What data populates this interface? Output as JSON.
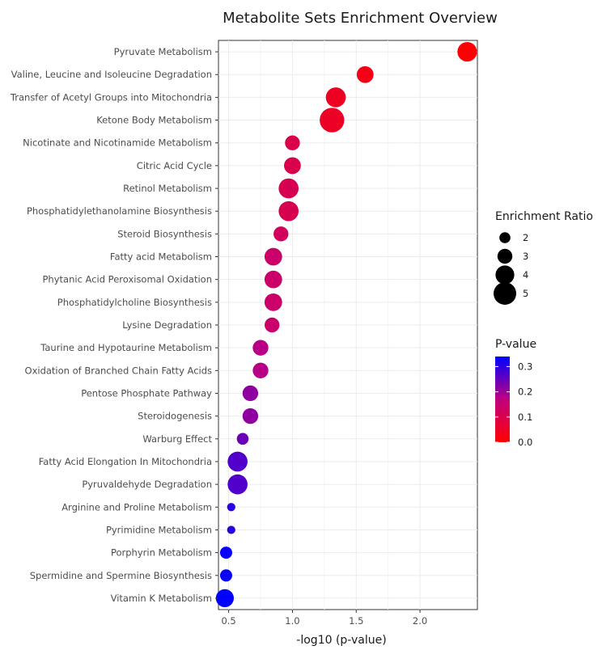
{
  "chart_data": {
    "type": "scatter",
    "title": "Metabolite Sets Enrichment Overview",
    "xlabel": "-log10 (p-value)",
    "ylabel": "",
    "xlim": [
      0.42,
      2.45
    ],
    "xticks": [
      "0.5",
      "1.0",
      "1.5",
      "2.0"
    ],
    "xtick_values": [
      0.5,
      1.0,
      1.5,
      2.0
    ],
    "grid": true,
    "points": [
      {
        "label": "Pyruvate Metabolism",
        "x": 2.37,
        "ratio": 4.2,
        "p": 0.004
      },
      {
        "label": "Valine, Leucine and Isoleucine Degradation",
        "x": 1.57,
        "ratio": 3.5,
        "p": 0.027
      },
      {
        "label": "Transfer of Acetyl Groups into Mitochondria",
        "x": 1.34,
        "ratio": 4.3,
        "p": 0.046
      },
      {
        "label": "Ketone Body Metabolism",
        "x": 1.31,
        "ratio": 5.5,
        "p": 0.049
      },
      {
        "label": "Nicotinate and Nicotinamide Metabolism",
        "x": 1.0,
        "ratio": 3.0,
        "p": 0.1
      },
      {
        "label": "Citric Acid Cycle",
        "x": 1.0,
        "ratio": 3.5,
        "p": 0.1
      },
      {
        "label": "Retinol Metabolism",
        "x": 0.97,
        "ratio": 4.3,
        "p": 0.107
      },
      {
        "label": "Phosphatidylethanolamine Biosynthesis",
        "x": 0.97,
        "ratio": 4.3,
        "p": 0.107
      },
      {
        "label": "Steroid Biosynthesis",
        "x": 0.91,
        "ratio": 3.0,
        "p": 0.123
      },
      {
        "label": "Fatty acid Metabolism",
        "x": 0.85,
        "ratio": 3.7,
        "p": 0.141
      },
      {
        "label": "Phytanic Acid Peroxisomal Oxidation",
        "x": 0.85,
        "ratio": 3.7,
        "p": 0.141
      },
      {
        "label": "Phosphatidylcholine Biosynthesis",
        "x": 0.85,
        "ratio": 3.7,
        "p": 0.141
      },
      {
        "label": "Lysine Degradation",
        "x": 0.84,
        "ratio": 3.0,
        "p": 0.145
      },
      {
        "label": "Taurine and Hypotaurine Metabolism",
        "x": 0.75,
        "ratio": 3.2,
        "p": 0.178
      },
      {
        "label": "Oxidation of Branched Chain Fatty Acids",
        "x": 0.75,
        "ratio": 3.2,
        "p": 0.178
      },
      {
        "label": "Pentose Phosphate Pathway",
        "x": 0.67,
        "ratio": 3.2,
        "p": 0.214
      },
      {
        "label": "Steroidogenesis",
        "x": 0.67,
        "ratio": 3.2,
        "p": 0.214
      },
      {
        "label": "Warburg Effect",
        "x": 0.61,
        "ratio": 2.2,
        "p": 0.245
      },
      {
        "label": "Fatty Acid Elongation In Mitochondria",
        "x": 0.57,
        "ratio": 4.3,
        "p": 0.269
      },
      {
        "label": "Pyruvaldehyde Degradation",
        "x": 0.57,
        "ratio": 4.3,
        "p": 0.269
      },
      {
        "label": "Arginine and Proline Metabolism",
        "x": 0.52,
        "ratio": 1.3,
        "p": 0.302
      },
      {
        "label": "Pyrimidine Metabolism",
        "x": 0.52,
        "ratio": 1.3,
        "p": 0.302
      },
      {
        "label": "Porphyrin Metabolism",
        "x": 0.48,
        "ratio": 2.3,
        "p": 0.331
      },
      {
        "label": "Spermidine and Spermine Biosynthesis",
        "x": 0.48,
        "ratio": 2.3,
        "p": 0.331
      },
      {
        "label": "Vitamin K Metabolism",
        "x": 0.47,
        "ratio": 3.8,
        "p": 0.339
      }
    ],
    "legend_size": {
      "title": "Enrichment Ratio",
      "entries": [
        {
          "label": "2",
          "value": 2
        },
        {
          "label": "3",
          "value": 3
        },
        {
          "label": "4",
          "value": 4
        },
        {
          "label": "5",
          "value": 5
        }
      ]
    },
    "legend_color": {
      "title": "P-value",
      "ticks": [
        {
          "label": "0.3",
          "value": 0.3
        },
        {
          "label": "0.2",
          "value": 0.2
        },
        {
          "label": "0.1",
          "value": 0.1
        },
        {
          "label": "0.0",
          "value": 0.0
        }
      ],
      "range": [
        0.0,
        0.34
      ],
      "low_color": "#ff0000",
      "high_color": "#0000ff"
    },
    "legend_placement": "right"
  }
}
